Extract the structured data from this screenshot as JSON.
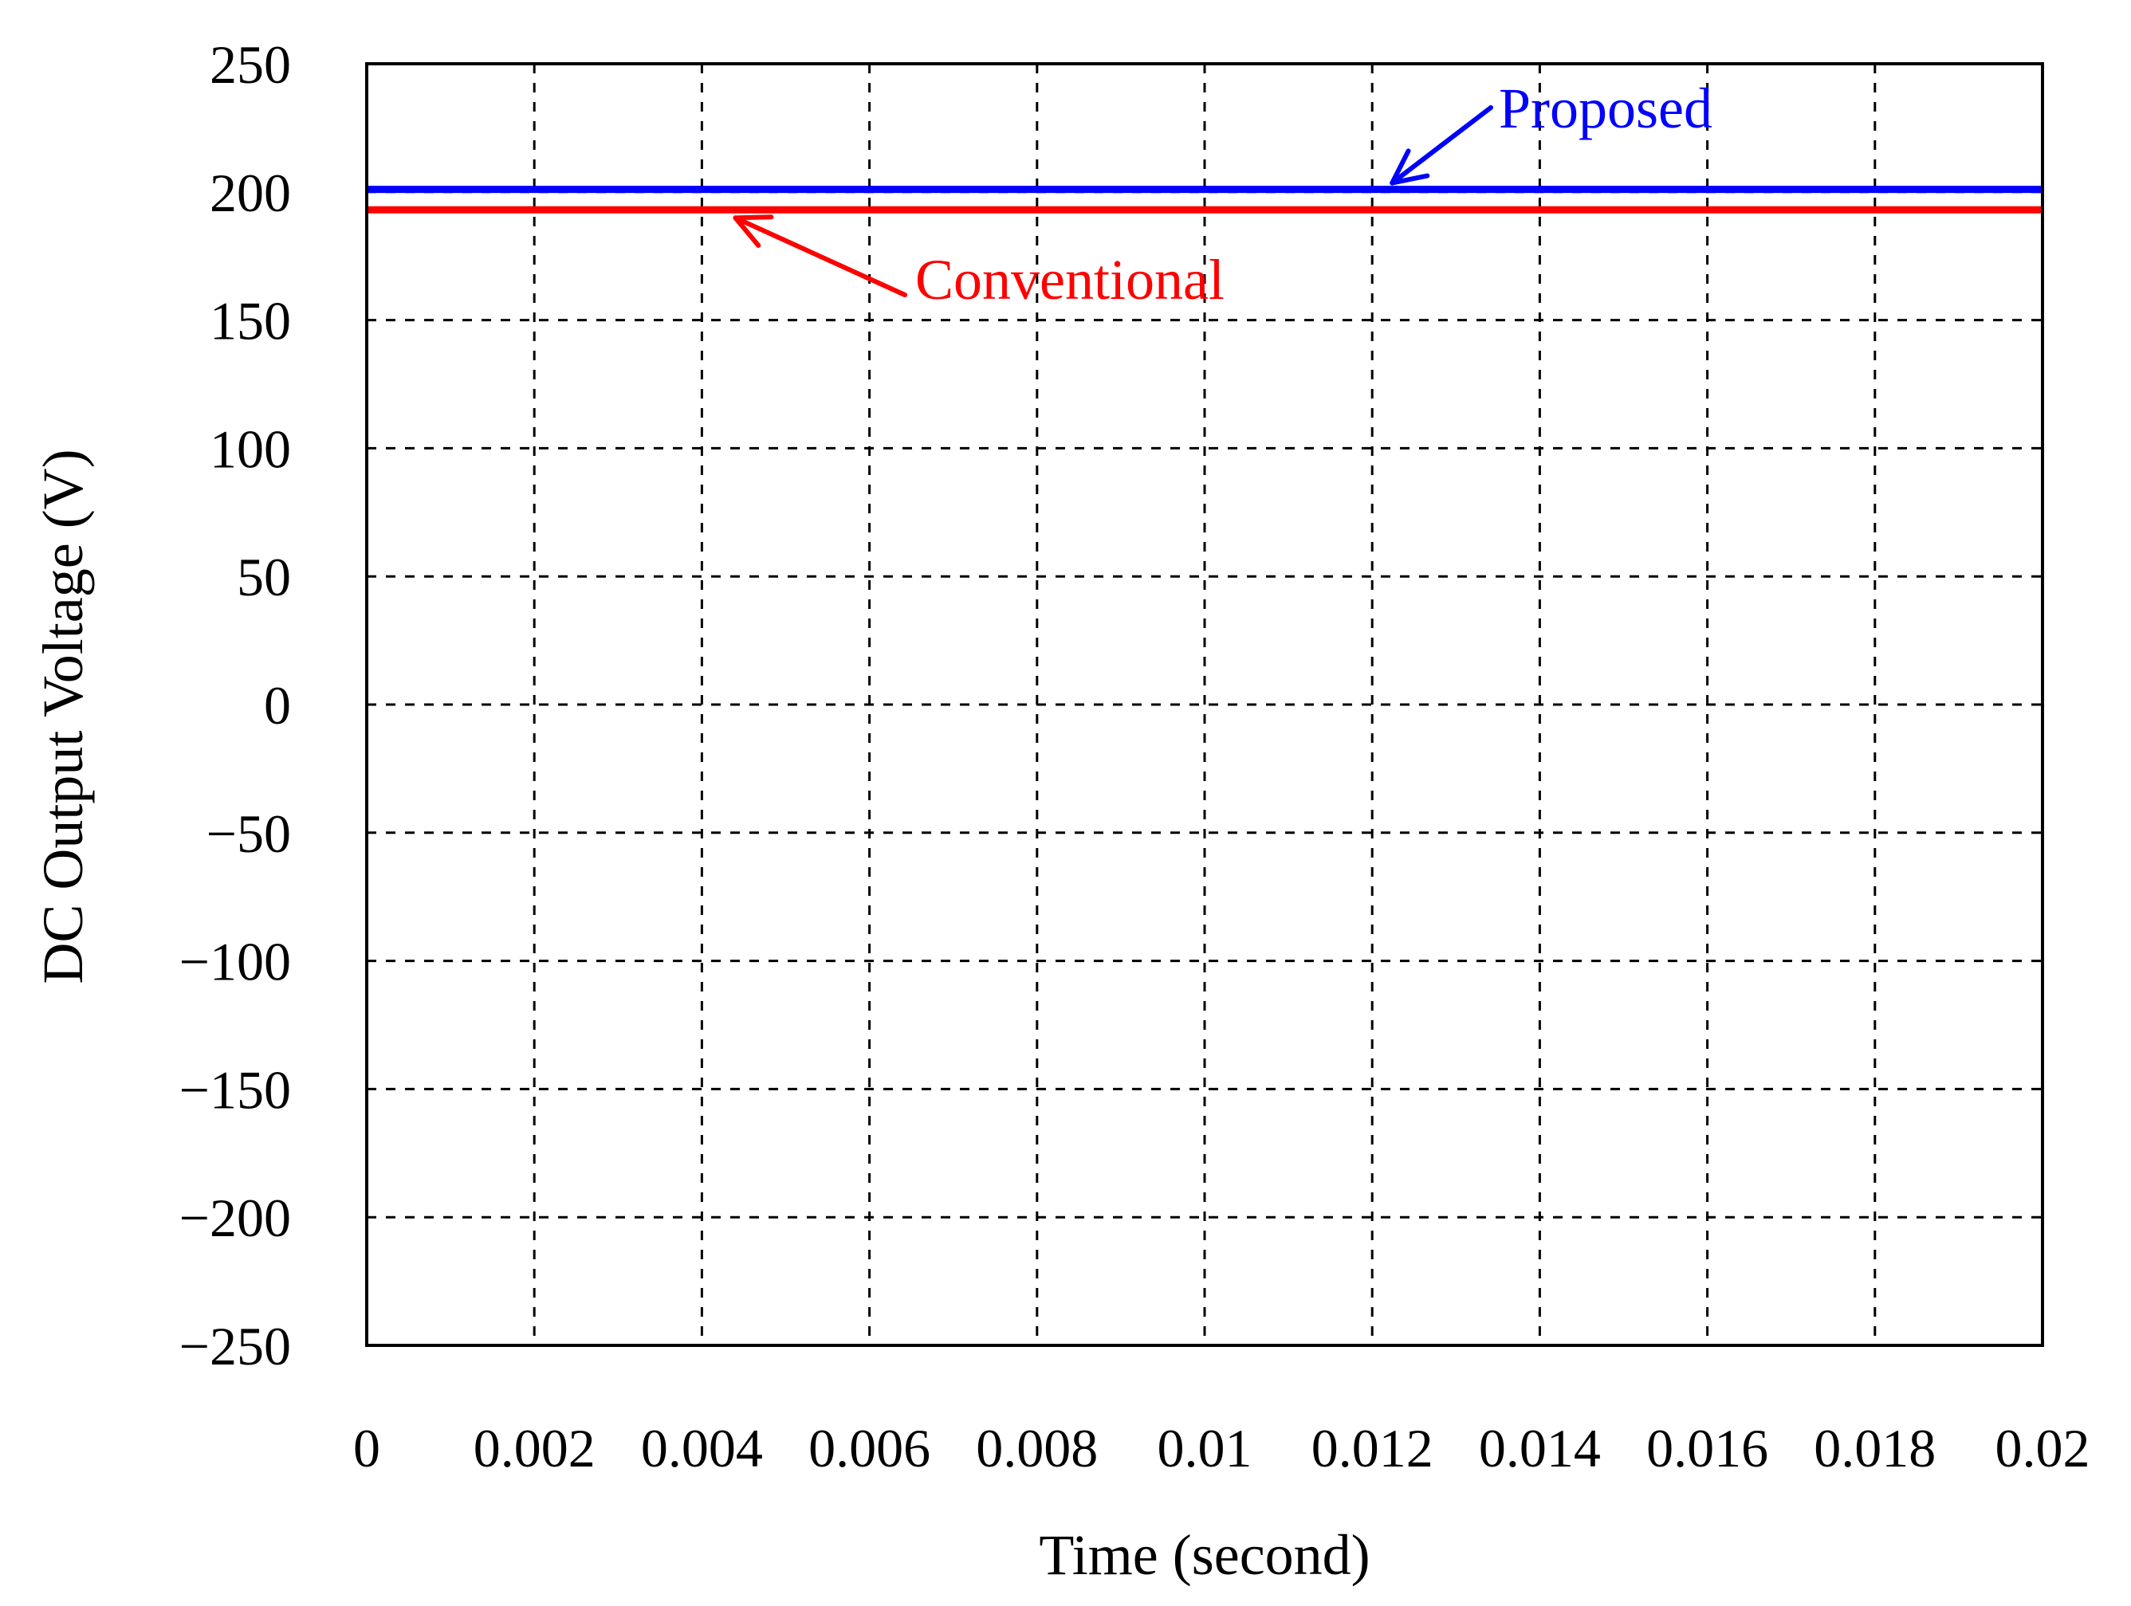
{
  "chart_data": {
    "type": "line",
    "title": "",
    "xlabel": "Time (second)",
    "ylabel": "DC Output Voltage (V)",
    "xlim": [
      0,
      0.02
    ],
    "ylim": [
      -250,
      250
    ],
    "xticks": [
      0,
      0.002,
      0.004,
      0.006,
      0.008,
      0.01,
      0.012,
      0.014,
      0.016,
      0.018,
      0.02
    ],
    "xtick_labels": [
      "0",
      "0.002",
      "0.004",
      "0.006",
      "0.008",
      "0.01",
      "0.012",
      "0.014",
      "0.016",
      "0.018",
      "0.02"
    ],
    "yticks": [
      250,
      200,
      150,
      100,
      50,
      0,
      -50,
      -100,
      -150,
      -200,
      -250
    ],
    "ytick_labels": [
      "250",
      "200",
      "150",
      "100",
      "50",
      "0",
      "−50",
      "−100",
      "−150",
      "−200",
      "−250"
    ],
    "grid": true,
    "legend": "none",
    "series": [
      {
        "name": "Proposed",
        "color": "#0000ff",
        "x": [
          0,
          0.02
        ],
        "y": [
          201,
          201
        ]
      },
      {
        "name": "Conventional",
        "color": "#ff0000",
        "x": [
          0,
          0.02
        ],
        "y": [
          193,
          193
        ]
      }
    ],
    "annotations": [
      {
        "text": "Proposed",
        "color": "#0000ff",
        "series": 0,
        "arrow_target_x": 0.0122,
        "arrow_target_y": 201
      },
      {
        "text": "Conventional",
        "color": "#ff0000",
        "series": 1,
        "arrow_target_x": 0.0044,
        "arrow_target_y": 193
      }
    ]
  }
}
